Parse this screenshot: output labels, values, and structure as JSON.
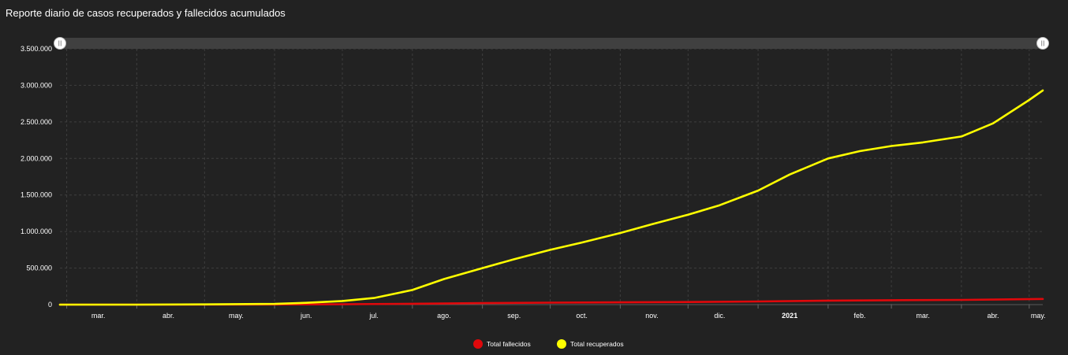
{
  "panel": {
    "title": "Reporte diario de casos recuperados y fallecidos acumulados"
  },
  "chart_data": {
    "type": "line",
    "title": "Reporte diario de casos recuperados y fallecidos acumulados",
    "xlabel": "",
    "ylabel": "",
    "x_range": [
      "2020-02-27",
      "2021-05-07"
    ],
    "ylim": [
      0,
      3500000
    ],
    "y_ticks": [
      0,
      500000,
      1000000,
      1500000,
      2000000,
      2500000,
      3000000,
      3500000
    ],
    "y_tick_labels": [
      "0",
      "500.000",
      "1.000.000",
      "1.500.000",
      "2.000.000",
      "2.500.000",
      "3.000.000",
      "3.500.000"
    ],
    "x_ticks": [
      {
        "date": "2020-03-15",
        "label": "mar."
      },
      {
        "date": "2020-04-15",
        "label": "abr."
      },
      {
        "date": "2020-05-15",
        "label": "may."
      },
      {
        "date": "2020-06-15",
        "label": "jun."
      },
      {
        "date": "2020-07-15",
        "label": "jul."
      },
      {
        "date": "2020-08-15",
        "label": "ago."
      },
      {
        "date": "2020-09-15",
        "label": "sep."
      },
      {
        "date": "2020-10-15",
        "label": "oct."
      },
      {
        "date": "2020-11-15",
        "label": "nov."
      },
      {
        "date": "2020-12-15",
        "label": "dic."
      },
      {
        "date": "2021-01-15",
        "label": "2021"
      },
      {
        "date": "2021-02-15",
        "label": "feb."
      },
      {
        "date": "2021-03-15",
        "label": "mar."
      },
      {
        "date": "2021-04-15",
        "label": "abr."
      },
      {
        "date": "2021-05-05",
        "label": "may."
      }
    ],
    "x_gridlines": [
      "2020-03-01",
      "2020-04-01",
      "2020-05-01",
      "2020-06-01",
      "2020-07-01",
      "2020-08-01",
      "2020-09-01",
      "2020-10-01",
      "2020-11-01",
      "2020-12-01",
      "2021-01-01",
      "2021-02-01",
      "2021-03-01",
      "2021-04-01",
      "2021-05-01"
    ],
    "grid": true,
    "legend_position": "bottom-center",
    "series": [
      {
        "name": "Total fallecidos",
        "color": "#e0080b",
        "points": [
          [
            "2020-02-27",
            0
          ],
          [
            "2020-04-01",
            50
          ],
          [
            "2020-05-01",
            500
          ],
          [
            "2020-06-01",
            2000
          ],
          [
            "2020-07-01",
            5500
          ],
          [
            "2020-08-01",
            12000
          ],
          [
            "2020-09-01",
            20000
          ],
          [
            "2020-10-01",
            27000
          ],
          [
            "2020-11-01",
            31000
          ],
          [
            "2020-12-01",
            36000
          ],
          [
            "2021-01-01",
            43000
          ],
          [
            "2021-02-01",
            55000
          ],
          [
            "2021-03-01",
            60000
          ],
          [
            "2021-04-01",
            65000
          ],
          [
            "2021-05-07",
            78000
          ]
        ]
      },
      {
        "name": "Total recuperados",
        "color": "#ffff00",
        "points": [
          [
            "2020-02-27",
            0
          ],
          [
            "2020-04-01",
            500
          ],
          [
            "2020-05-01",
            3000
          ],
          [
            "2020-06-01",
            10000
          ],
          [
            "2020-06-15",
            25000
          ],
          [
            "2020-07-01",
            50000
          ],
          [
            "2020-07-15",
            90000
          ],
          [
            "2020-08-01",
            200000
          ],
          [
            "2020-08-15",
            350000
          ],
          [
            "2020-09-01",
            500000
          ],
          [
            "2020-09-15",
            620000
          ],
          [
            "2020-10-01",
            750000
          ],
          [
            "2020-10-15",
            850000
          ],
          [
            "2020-11-01",
            980000
          ],
          [
            "2020-11-15",
            1100000
          ],
          [
            "2020-12-01",
            1230000
          ],
          [
            "2020-12-15",
            1360000
          ],
          [
            "2021-01-01",
            1560000
          ],
          [
            "2021-01-15",
            1780000
          ],
          [
            "2021-02-01",
            2000000
          ],
          [
            "2021-02-15",
            2100000
          ],
          [
            "2021-03-01",
            2170000
          ],
          [
            "2021-03-15",
            2220000
          ],
          [
            "2021-04-01",
            2300000
          ],
          [
            "2021-04-15",
            2480000
          ],
          [
            "2021-05-01",
            2800000
          ],
          [
            "2021-05-07",
            2930000
          ]
        ]
      }
    ]
  }
}
